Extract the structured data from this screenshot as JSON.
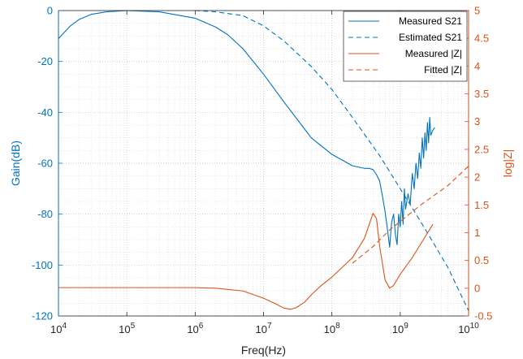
{
  "chart_data": {
    "type": "line",
    "xlabel": "Freq(Hz)",
    "ylabel_left": "Gain(dB)",
    "ylabel_right": "log|Z|",
    "x_scale": "log",
    "xlim": [
      10000,
      10000000000
    ],
    "ylim_left": [
      -120,
      0
    ],
    "ylim_right": [
      -0.5,
      5
    ],
    "grid": "major and minor, dotted",
    "legend_position": "top-right",
    "colors": {
      "left_axis": "#0072BD",
      "right_axis": "#D95319"
    },
    "x_ticks": [
      {
        "value": 10000,
        "base": "10",
        "exp": "4"
      },
      {
        "value": 100000,
        "base": "10",
        "exp": "5"
      },
      {
        "value": 1000000,
        "base": "10",
        "exp": "6"
      },
      {
        "value": 10000000,
        "base": "10",
        "exp": "7"
      },
      {
        "value": 100000000,
        "base": "10",
        "exp": "8"
      },
      {
        "value": 1000000000,
        "base": "10",
        "exp": "9"
      },
      {
        "value": 10000000000,
        "base": "10",
        "exp": "10"
      }
    ],
    "y_ticks_left": [
      {
        "value": 0,
        "label": "0"
      },
      {
        "value": -20,
        "label": "-20"
      },
      {
        "value": -40,
        "label": "-40"
      },
      {
        "value": -60,
        "label": "-60"
      },
      {
        "value": -80,
        "label": "-80"
      },
      {
        "value": -100,
        "label": "-100"
      },
      {
        "value": -120,
        "label": "-120"
      }
    ],
    "y_ticks_right": [
      {
        "value": -0.5,
        "label": "-0.5"
      },
      {
        "value": 0,
        "label": "0"
      },
      {
        "value": 0.5,
        "label": "0.5"
      },
      {
        "value": 1,
        "label": "1"
      },
      {
        "value": 1.5,
        "label": "1.5"
      },
      {
        "value": 2,
        "label": "2"
      },
      {
        "value": 2.5,
        "label": "2.5"
      },
      {
        "value": 3,
        "label": "3"
      },
      {
        "value": 3.5,
        "label": "3.5"
      },
      {
        "value": 4,
        "label": "4"
      },
      {
        "value": 4.5,
        "label": "4.5"
      },
      {
        "value": 5,
        "label": "5"
      }
    ],
    "series": [
      {
        "name": "Measured S21",
        "axis": "left",
        "style": "solid",
        "color": "#0072BD",
        "x": [
          10000,
          15000,
          20000,
          30000,
          50000,
          100000,
          300000,
          1000000,
          2000000,
          3000000,
          5000000,
          10000000,
          20000000,
          50000000,
          100000000,
          200000000,
          300000000,
          350000000,
          400000000,
          450000000,
          500000000,
          550000000,
          600000000,
          650000000,
          700000000,
          750000000,
          800000000,
          850000000,
          900000000,
          950000000,
          1000000000,
          1050000000,
          1100000000,
          1150000000,
          1200000000,
          1300000000,
          1400000000,
          1500000000,
          1600000000,
          1700000000,
          1800000000,
          1900000000,
          2000000000,
          2100000000,
          2200000000,
          2300000000,
          2400000000,
          2500000000,
          2600000000,
          2700000000,
          2800000000,
          3000000000,
          3200000000
        ],
        "y": [
          -11,
          -6,
          -3.5,
          -1.5,
          -0.5,
          0,
          -0.5,
          -3,
          -6.5,
          -9.5,
          -15,
          -25,
          -36,
          -50,
          -56.5,
          -61,
          -62,
          -62,
          -62.5,
          -64.5,
          -67,
          -73,
          -79,
          -86,
          -93,
          -83,
          -80,
          -88,
          -92,
          -80,
          -85,
          -75,
          -84,
          -70,
          -78,
          -72,
          -76,
          -64,
          -70,
          -60,
          -66,
          -56,
          -62,
          -50,
          -58,
          -48,
          -55,
          -44,
          -52,
          -42,
          -49,
          -47,
          -46
        ]
      },
      {
        "name": "Estimated S21",
        "axis": "left",
        "style": "dashed",
        "color": "#0072BD",
        "x": [
          1000000,
          2000000,
          5000000,
          10000000,
          20000000,
          50000000,
          100000000,
          200000000,
          500000000,
          1000000000,
          2000000000,
          5000000000,
          10000000000
        ],
        "y": [
          0,
          -0.5,
          -2,
          -6,
          -12,
          -22,
          -31,
          -42,
          -57,
          -70,
          -83,
          -101,
          -118
        ]
      },
      {
        "name": "Measured |Z|",
        "axis": "right",
        "style": "solid",
        "color": "#D95319",
        "x": [
          10000,
          100000,
          1000000,
          2000000,
          5000000,
          10000000,
          15000000,
          20000000,
          25000000,
          30000000,
          40000000,
          50000000,
          70000000,
          100000000,
          200000000,
          300000000,
          400000000,
          450000000,
          500000000,
          600000000,
          700000000,
          800000000,
          1000000000,
          1500000000,
          2000000000,
          3000000000
        ],
        "y": [
          0.01,
          0.01,
          0.01,
          0.0,
          -0.05,
          -0.18,
          -0.28,
          -0.36,
          -0.38,
          -0.35,
          -0.25,
          -0.12,
          0.05,
          0.2,
          0.55,
          0.9,
          1.35,
          1.25,
          0.75,
          0.15,
          0.0,
          0.05,
          0.25,
          0.55,
          0.8,
          1.15
        ]
      },
      {
        "name": "Fitted |Z|",
        "axis": "right",
        "style": "dashed",
        "color": "#D95319",
        "x": [
          200000000,
          400000000,
          700000000,
          1000000000,
          2000000000,
          5000000000,
          10000000000
        ],
        "y": [
          0.45,
          0.75,
          1.05,
          1.2,
          1.5,
          1.85,
          2.2
        ]
      }
    ]
  }
}
